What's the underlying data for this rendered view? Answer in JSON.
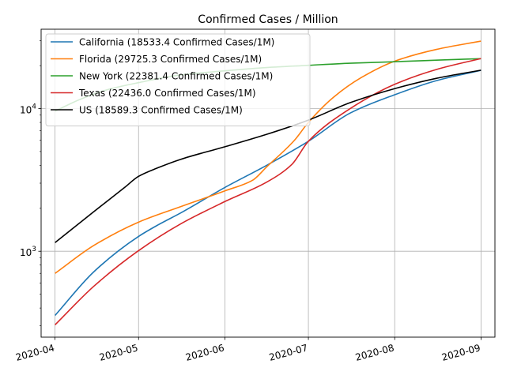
{
  "chart_data": {
    "type": "line",
    "title": "Confirmed Cases / Million",
    "xlabel": "",
    "ylabel": "",
    "y_scale": "log",
    "ylim": [
      250,
      36000
    ],
    "xlim": [
      "2020-03-27",
      "2020-09-06"
    ],
    "x_ticks": [
      "2020-04-01",
      "2020-05-01",
      "2020-06-01",
      "2020-07-01",
      "2020-08-01",
      "2020-09-01"
    ],
    "x_tick_labels": [
      "2020-04",
      "2020-05",
      "2020-06",
      "2020-07",
      "2020-08",
      "2020-09"
    ],
    "y_ticks": [
      1000,
      10000
    ],
    "y_tick_labels_base": [
      "10",
      "10"
    ],
    "y_tick_labels_exp": [
      "3",
      "4"
    ],
    "grid": true,
    "legend_position": "upper-left",
    "colors": {
      "California": "#1f77b4",
      "Florida": "#ff7f0e",
      "New York": "#2ca02c",
      "Texas": "#d62728",
      "US": "#000000"
    },
    "series": [
      {
        "name": "California",
        "legend_label": "California (18533.4 Confirmed Cases/1M)",
        "color": "#1f77b4",
        "x": [
          "2020-04-01",
          "2020-04-15",
          "2020-05-01",
          "2020-05-08",
          "2020-05-16",
          "2020-06-01",
          "2020-06-16",
          "2020-07-01",
          "2020-07-16",
          "2020-08-01",
          "2020-08-16",
          "2020-09-01"
        ],
        "y": [
          355,
          720,
          1270,
          1530,
          1850,
          2800,
          4000,
          5900,
          9300,
          12500,
          15700,
          18533.4
        ]
      },
      {
        "name": "Florida",
        "legend_label": "Florida (29725.3 Confirmed Cases/1M)",
        "color": "#ff7f0e",
        "x": [
          "2020-04-01",
          "2020-04-15",
          "2020-05-01",
          "2020-05-16",
          "2020-06-01",
          "2020-06-11",
          "2020-06-16",
          "2020-06-26",
          "2020-07-01",
          "2020-07-10",
          "2020-07-20",
          "2020-08-01",
          "2020-08-16",
          "2020-09-01"
        ],
        "y": [
          700,
          1100,
          1600,
          2050,
          2650,
          3150,
          3900,
          6000,
          8000,
          12000,
          16500,
          21500,
          26000,
          29725.3
        ]
      },
      {
        "name": "New York",
        "legend_label": "New York (22381.4 Confirmed Cases/1M)",
        "color": "#2ca02c",
        "x": [
          "2020-04-01",
          "2020-04-10",
          "2020-04-20",
          "2020-05-01",
          "2020-05-16",
          "2020-06-01",
          "2020-06-16",
          "2020-07-01",
          "2020-07-16",
          "2020-08-01",
          "2020-08-16",
          "2020-09-01"
        ],
        "y": [
          9600,
          11600,
          13600,
          15200,
          17200,
          18400,
          19400,
          20100,
          20800,
          21300,
          21850,
          22381.4
        ]
      },
      {
        "name": "Texas",
        "legend_label": "Texas (22436.0 Confirmed Cases/1M)",
        "color": "#d62728",
        "x": [
          "2020-04-01",
          "2020-04-15",
          "2020-05-01",
          "2020-05-16",
          "2020-06-01",
          "2020-06-16",
          "2020-06-25",
          "2020-07-01",
          "2020-07-16",
          "2020-08-01",
          "2020-08-16",
          "2020-09-01"
        ],
        "y": [
          305,
          570,
          1010,
          1550,
          2230,
          3050,
          4050,
          5900,
          10000,
          14800,
          18800,
          22436.0
        ]
      },
      {
        "name": "US",
        "legend_label": "US (18589.3 Confirmed Cases/1M)",
        "color": "#000000",
        "x": [
          "2020-04-01",
          "2020-04-15",
          "2020-04-26",
          "2020-05-01",
          "2020-05-08",
          "2020-05-16",
          "2020-06-01",
          "2020-06-16",
          "2020-07-01",
          "2020-07-16",
          "2020-08-01",
          "2020-08-16",
          "2020-09-01"
        ],
        "y": [
          1150,
          1900,
          2800,
          3350,
          3850,
          4400,
          5400,
          6600,
          8300,
          11000,
          13800,
          16300,
          18589.3
        ]
      }
    ]
  }
}
